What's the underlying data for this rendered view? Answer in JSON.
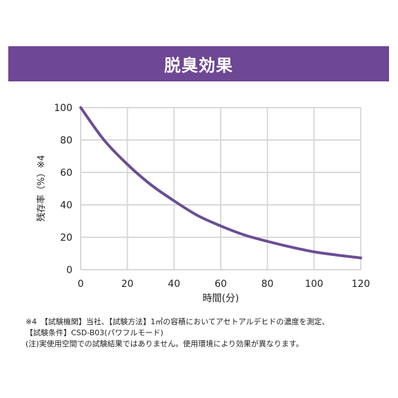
{
  "theme": {
    "banner_color": "#6e4795",
    "line_color": "#6b4d94",
    "grid_color": "#d9d9d9"
  },
  "banner": {
    "title": "脱臭効果"
  },
  "chart_data": {
    "type": "line",
    "title": "",
    "xlabel": "時間(分)",
    "ylabel": "残存率（%）※4",
    "xlim": [
      0,
      120
    ],
    "ylim": [
      0,
      100
    ],
    "x_ticks": [
      "0",
      "20",
      "40",
      "60",
      "80",
      "100",
      "120"
    ],
    "y_ticks": [
      "0",
      "20",
      "40",
      "60",
      "80",
      "100"
    ],
    "grid": true,
    "x": [
      0,
      10,
      20,
      30,
      40,
      50,
      60,
      70,
      80,
      90,
      100,
      110,
      120
    ],
    "series": [
      {
        "name": "",
        "values": [
          100,
          80,
          65,
          52.5,
          42.5,
          33.5,
          27,
          21.5,
          17.5,
          14,
          11,
          9,
          7.3
        ]
      }
    ]
  },
  "notes": [
    "※4　【試験機関】当社、【試験方法】1㎥の容積においてアセトアルデヒドの濃度を測定、",
    "【試験条件】CSD-B03(パワフルモード)",
    "(注)実使用空間での試験結果ではありません。使用環境により効果が異なります。"
  ]
}
